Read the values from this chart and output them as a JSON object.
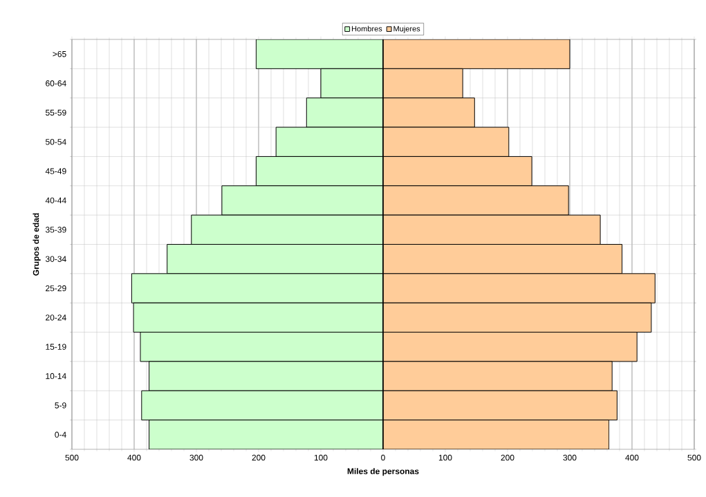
{
  "chart_data": {
    "type": "bar",
    "orientation": "horizontal",
    "xlabel": "Miles de personas",
    "ylabel": "Grupos de edad",
    "categories": [
      ">65",
      "60-64",
      "55-59",
      "50-54",
      "45-49",
      "40-44",
      "35-39",
      "30-34",
      "25-29",
      "20-24",
      "15-19",
      "10-14",
      "5-9",
      "0-4"
    ],
    "series": [
      {
        "name": "Hombres",
        "color": "#ccffcc",
        "values": [
          -204,
          -100,
          -123,
          -172,
          -204,
          -259,
          -308,
          -347,
          -404,
          -401,
          -390,
          -376,
          -388,
          -376
        ]
      },
      {
        "name": "Mujeres",
        "color": "#ffcc99",
        "values": [
          300,
          128,
          147,
          202,
          239,
          298,
          349,
          384,
          437,
          431,
          408,
          368,
          376,
          363
        ]
      }
    ],
    "xlim": [
      -500,
      500
    ],
    "xticks": [
      {
        "value": -500,
        "label": "500"
      },
      {
        "value": -400,
        "label": "400"
      },
      {
        "value": -300,
        "label": "300"
      },
      {
        "value": -200,
        "label": "200"
      },
      {
        "value": -100,
        "label": "100"
      },
      0,
      100,
      200,
      300,
      400,
      500
    ],
    "grid": true,
    "legend": "top",
    "stacked": true
  }
}
